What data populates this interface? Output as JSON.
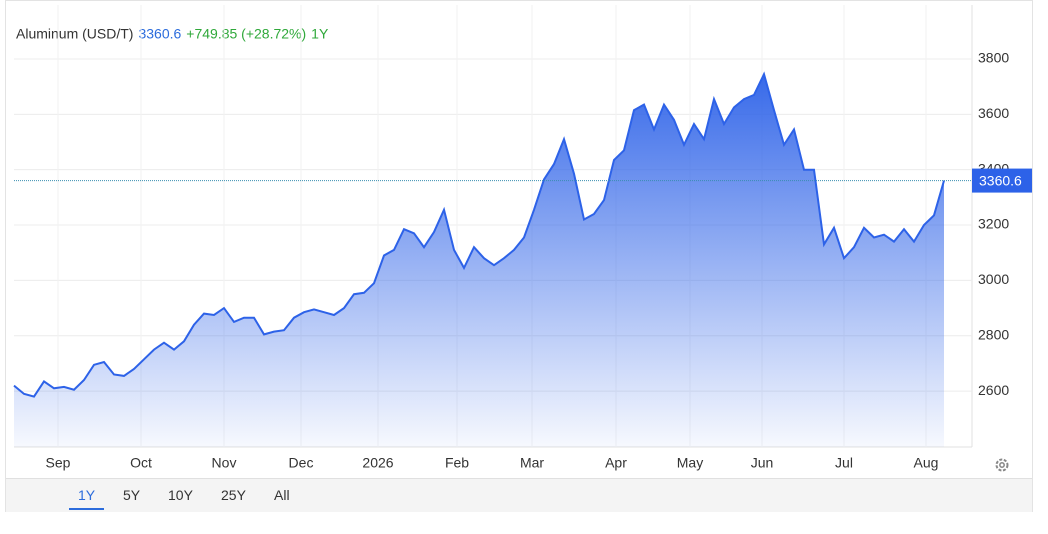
{
  "chart_data": {
    "type": "area",
    "title": "Aluminum (USD/T)",
    "price": "3360.6",
    "change": "+749.85 (+28.72%)",
    "period": "1Y",
    "series": [
      {
        "name": "Aluminum",
        "color": "#2d62e8",
        "values": [
          2620,
          2590,
          2580,
          2635,
          2610,
          2615,
          2605,
          2640,
          2695,
          2705,
          2660,
          2655,
          2680,
          2715,
          2750,
          2775,
          2750,
          2780,
          2840,
          2880,
          2875,
          2900,
          2850,
          2865,
          2865,
          2805,
          2815,
          2820,
          2865,
          2885,
          2895,
          2885,
          2875,
          2900,
          2950,
          2955,
          2990,
          3090,
          3110,
          3185,
          3170,
          3120,
          3175,
          3255,
          3110,
          3045,
          3120,
          3080,
          3055,
          3080,
          3110,
          3155,
          3255,
          3365,
          3420,
          3510,
          3385,
          3220,
          3240,
          3290,
          3435,
          3470,
          3615,
          3635,
          3545,
          3635,
          3580,
          3490,
          3565,
          3510,
          3655,
          3565,
          3625,
          3655,
          3670,
          3745,
          3615,
          3490,
          3545,
          3400,
          3400,
          3130,
          3190,
          3080,
          3120,
          3190,
          3155,
          3165,
          3140,
          3185,
          3140,
          3200,
          3235,
          3360.6
        ]
      }
    ],
    "xlim": [
      0,
      95.8
    ],
    "xticks": [
      {
        "value": 4.4,
        "label": "Sep"
      },
      {
        "value": 12.7,
        "label": "Oct"
      },
      {
        "value": 21,
        "label": "Nov"
      },
      {
        "value": 28.7,
        "label": "Dec"
      },
      {
        "value": 36.4,
        "label": "2026"
      },
      {
        "value": 44.3,
        "label": "Feb"
      },
      {
        "value": 51.8,
        "label": "Mar"
      },
      {
        "value": 60.2,
        "label": "Apr"
      },
      {
        "value": 67.6,
        "label": "May"
      },
      {
        "value": 74.8,
        "label": "Jun"
      },
      {
        "value": 83,
        "label": "Jul"
      },
      {
        "value": 91.2,
        "label": "Aug"
      }
    ],
    "ylim": [
      2398,
      3995
    ],
    "yticks": [
      2600,
      2800,
      3000,
      3200,
      3400,
      3600,
      3800
    ],
    "grid": true,
    "ranges": [
      "1Y",
      "5Y",
      "10Y",
      "25Y",
      "All"
    ]
  }
}
